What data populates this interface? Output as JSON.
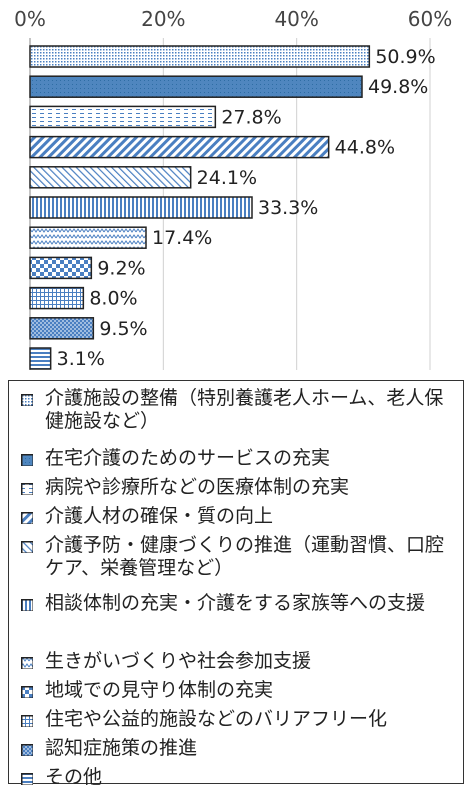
{
  "chart_data": {
    "type": "bar",
    "orientation": "horizontal",
    "title": "",
    "xlabel": "",
    "ylabel": "",
    "xlim": [
      0,
      60
    ],
    "x_ticks": [
      "0%",
      "20%",
      "40%",
      "60%"
    ],
    "grid": true,
    "legend_position": "bottom",
    "categories": [
      "介護施設の整備（特別養護老人ホーム、老人保健施設など）",
      "在宅介護のためのサービスの充実",
      "病院や診療所などの医療体制の充実",
      "介護人材の確保・質の向上",
      "介護予防・健康づくりの推進（運動習慣、口腔ケア、栄養管理など）",
      "相談体制の充実・介護をする家族等への支援",
      "生きがいづくりや社会参加支援",
      "地域での見守り体制の充実",
      "住宅や公益的施設などのバリアフリー化",
      "認知症施策の推進",
      "その他"
    ],
    "values": [
      50.9,
      49.8,
      27.8,
      44.8,
      24.1,
      33.3,
      17.4,
      9.2,
      8.0,
      9.5,
      3.1
    ],
    "value_labels": [
      "50.9%",
      "49.8%",
      "27.8%",
      "44.8%",
      "24.1%",
      "33.3%",
      "17.4%",
      "9.2%",
      "8.0%",
      "9.5%",
      "3.1%"
    ],
    "patterns": [
      "dots",
      "solid",
      "hdash",
      "diag",
      "diag-light",
      "vlines",
      "wave",
      "check",
      "grid",
      "dense",
      "hlines"
    ],
    "colors": {
      "accent": "#4a7fc1",
      "dark": "#2e6da4",
      "border": "#222222",
      "grid": "#d0d0d0"
    }
  }
}
